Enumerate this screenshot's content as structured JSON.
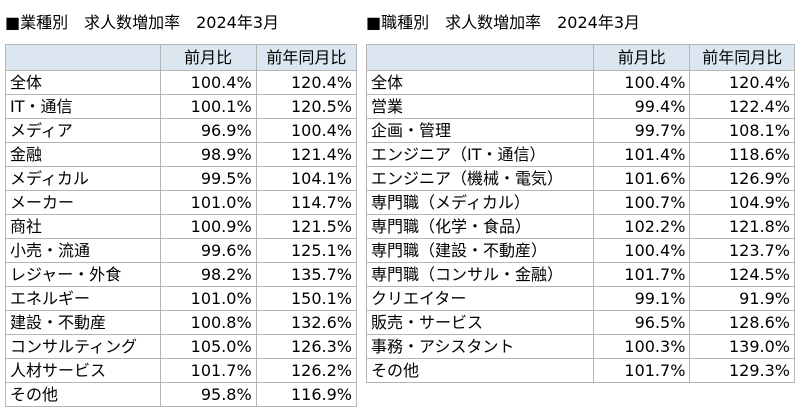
{
  "tables": [
    {
      "title": "■業種別　求人数増加率　2024年3月",
      "header": [
        "前月比",
        "前年同月比"
      ],
      "rows": [
        [
          "全体",
          "100.4%",
          "120.4%"
        ],
        [
          "IT・通信",
          "100.1%",
          "120.5%"
        ],
        [
          "メディア",
          "96.9%",
          "100.4%"
        ],
        [
          "金融",
          "98.9%",
          "121.4%"
        ],
        [
          "メディカル",
          "99.5%",
          "104.1%"
        ],
        [
          "メーカー",
          "101.0%",
          "114.7%"
        ],
        [
          "商社",
          "100.9%",
          "121.5%"
        ],
        [
          "小売・流通",
          "99.6%",
          "125.1%"
        ],
        [
          "レジャー・外食",
          "98.2%",
          "135.7%"
        ],
        [
          "エネルギー",
          "101.0%",
          "150.1%"
        ],
        [
          "建設・不動産",
          "100.8%",
          "132.6%"
        ],
        [
          "コンサルティング",
          "105.0%",
          "126.3%"
        ],
        [
          "人材サービス",
          "101.7%",
          "126.2%"
        ],
        [
          "その他",
          "95.8%",
          "116.9%"
        ]
      ]
    },
    {
      "title": "■職種別　求人数増加率　2024年3月",
      "header": [
        "前月比",
        "前年同月比"
      ],
      "rows": [
        [
          "全体",
          "100.4%",
          "120.4%"
        ],
        [
          "営業",
          "99.4%",
          "122.4%"
        ],
        [
          "企画・管理",
          "99.7%",
          "108.1%"
        ],
        [
          "エンジニア（IT・通信）",
          "101.4%",
          "118.6%"
        ],
        [
          "エンジニア（機械・電気）",
          "101.6%",
          "126.9%"
        ],
        [
          "専門職（メディカル）",
          "100.7%",
          "104.9%"
        ],
        [
          "専門職（化学・食品）",
          "102.2%",
          "121.8%"
        ],
        [
          "専門職（建設・不動産）",
          "100.4%",
          "123.7%"
        ],
        [
          "専門職（コンサル・金融）",
          "101.7%",
          "124.5%"
        ],
        [
          "クリエイター",
          "99.1%",
          "91.9%"
        ],
        [
          "販売・サービス",
          "96.5%",
          "128.6%"
        ],
        [
          "事務・アシスタント",
          "100.3%",
          "139.0%"
        ],
        [
          "その他",
          "101.7%",
          "129.3%"
        ]
      ]
    }
  ]
}
